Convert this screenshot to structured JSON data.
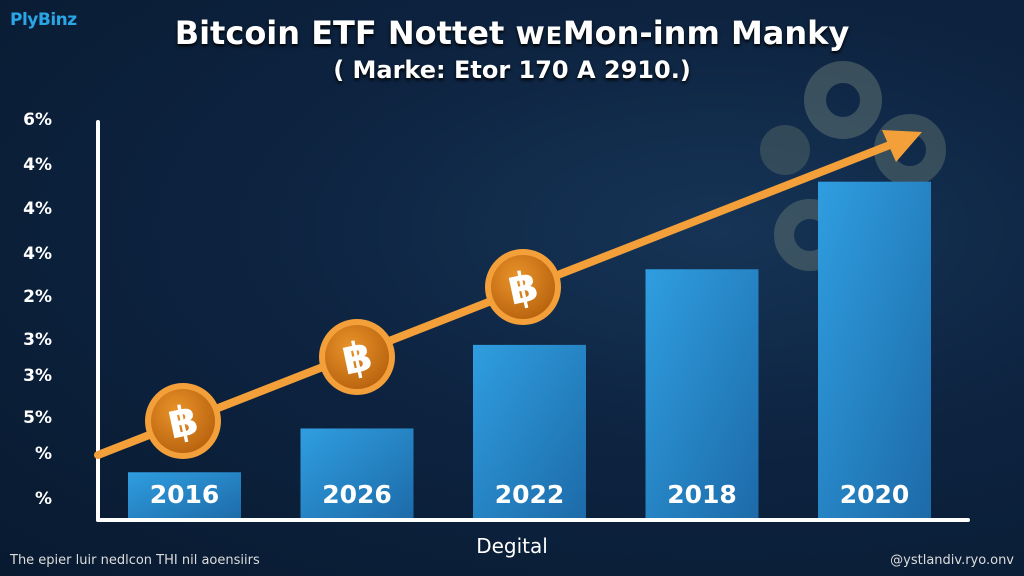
{
  "logo": "PlyBinz",
  "chart_data": {
    "type": "bar",
    "title": "Bitcoin ETF Nottet wᴇMon-inm Manky",
    "subtitle": "( Marke: Etor 170 A 2910.)",
    "categories": [
      "2016",
      "2026",
      "2022",
      "2018",
      "2020"
    ],
    "values": [
      12,
      23,
      44,
      63,
      85
    ],
    "ylim": [
      0,
      100
    ],
    "yticks": [
      "6%",
      "4%",
      "4%",
      "4%",
      "2%",
      "3%",
      "3%",
      "5%",
      "%",
      "%"
    ],
    "xlabel": "Degital",
    "ylabel": "",
    "grid": false,
    "legend": "none",
    "trend_arrow": {
      "color": "#f3a03a",
      "coins_on_arrow": 3,
      "coin_icon": "bitcoin-icon"
    },
    "colors": {
      "bar": "#2a8fd0",
      "bar_light": "#36a6e8",
      "arrow": "#f3a03a",
      "coin": "#d97f1c",
      "background": "#0b1f38"
    }
  },
  "footer": {
    "left": "The epier luir nedlcon THI nil aoensiirs",
    "right": "@ystlandiv.ryo.onv"
  }
}
